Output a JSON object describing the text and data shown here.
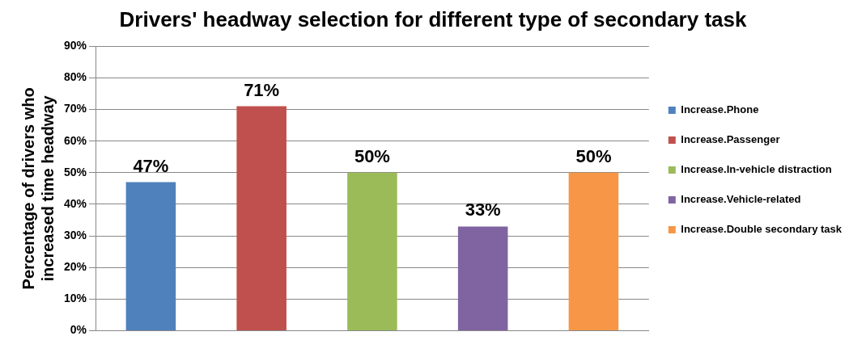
{
  "chart_data": {
    "type": "bar",
    "title": "Drivers' headway selection for different type of secondary task",
    "ylabel": "Percentage of drivers who increased time headway",
    "categories": [
      null,
      null,
      null,
      null,
      null
    ],
    "series": [
      {
        "name": "Increase.Phone",
        "color": "#4f81bd",
        "values": [
          47,
          null,
          null,
          null,
          null
        ],
        "value_labels": [
          "47%",
          null,
          null,
          null,
          null
        ]
      },
      {
        "name": "Increase.Passenger",
        "color": "#c0504d",
        "values": [
          null,
          71,
          null,
          null,
          null
        ],
        "value_labels": [
          null,
          "71%",
          null,
          null,
          null
        ]
      },
      {
        "name": "Increase.In-vehicle distraction",
        "color": "#9bbb59",
        "values": [
          null,
          null,
          50,
          null,
          null
        ],
        "value_labels": [
          null,
          null,
          "50%",
          null,
          null
        ]
      },
      {
        "name": "Increase.Vehicle-related",
        "color": "#8064a2",
        "values": [
          null,
          null,
          null,
          33,
          null
        ],
        "value_labels": [
          null,
          null,
          null,
          "33%",
          null
        ]
      },
      {
        "name": "Increase.Double secondary task",
        "color": "#f79646",
        "values": [
          null,
          null,
          null,
          null,
          50
        ],
        "value_labels": [
          null,
          null,
          null,
          null,
          "50%"
        ]
      }
    ],
    "ylim": [
      0,
      90
    ],
    "yticks": [
      {
        "value": 0,
        "label": "0%"
      },
      {
        "value": 10,
        "label": "10%"
      },
      {
        "value": 20,
        "label": "20%"
      },
      {
        "value": 30,
        "label": "30%"
      },
      {
        "value": 40,
        "label": "40%"
      },
      {
        "value": 50,
        "label": "50%"
      },
      {
        "value": 60,
        "label": "60%"
      },
      {
        "value": 70,
        "label": "70%"
      },
      {
        "value": 80,
        "label": "80%"
      },
      {
        "value": 90,
        "label": "90%"
      }
    ],
    "grid": "y",
    "legend": "right"
  }
}
